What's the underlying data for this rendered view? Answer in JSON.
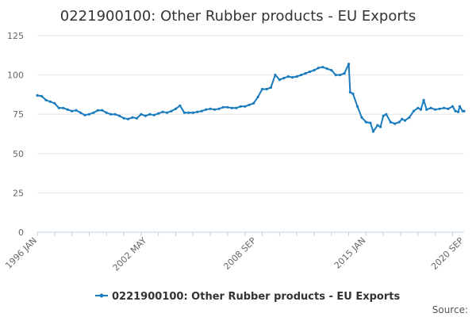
{
  "chart_data": {
    "type": "line",
    "title": "0221900100: Other Rubber products - EU Exports",
    "xlabel": "",
    "ylabel": "",
    "ylim": [
      0,
      125
    ],
    "yticks": [
      0,
      25,
      50,
      75,
      100,
      125
    ],
    "xrange": [
      "1996-01",
      "2020-09"
    ],
    "xticks": [
      {
        "label": "1996 JAN",
        "date": "1996-01"
      },
      {
        "label": "2002 MAY",
        "date": "2002-05"
      },
      {
        "label": "2008 SEP",
        "date": "2008-09"
      },
      {
        "label": "2015 JAN",
        "date": "2015-01"
      },
      {
        "label": "2020 SEP",
        "date": "2020-09"
      }
    ],
    "grid": "horizontal",
    "legend_position": "bottom",
    "series": [
      {
        "name": "0221900100: Other Rubber products - EU Exports",
        "color": "#1a7bbd",
        "points": [
          [
            "1996-01",
            87
          ],
          [
            "1996-04",
            86.5
          ],
          [
            "1996-07",
            84
          ],
          [
            "1996-10",
            83
          ],
          [
            "1997-01",
            82
          ],
          [
            "1997-04",
            79
          ],
          [
            "1997-07",
            79
          ],
          [
            "1997-10",
            78
          ],
          [
            "1998-01",
            77
          ],
          [
            "1998-04",
            77.5
          ],
          [
            "1998-07",
            76
          ],
          [
            "1998-10",
            74.5
          ],
          [
            "1999-01",
            75
          ],
          [
            "1999-04",
            76
          ],
          [
            "1999-07",
            77.5
          ],
          [
            "1999-10",
            77.5
          ],
          [
            "2000-01",
            76
          ],
          [
            "2000-04",
            75
          ],
          [
            "2000-07",
            75
          ],
          [
            "2000-10",
            74
          ],
          [
            "2001-01",
            72.5
          ],
          [
            "2001-04",
            72
          ],
          [
            "2001-07",
            73
          ],
          [
            "2001-10",
            72.5
          ],
          [
            "2002-01",
            75
          ],
          [
            "2002-04",
            74
          ],
          [
            "2002-07",
            75
          ],
          [
            "2002-10",
            74.5
          ],
          [
            "2003-01",
            75.5
          ],
          [
            "2003-04",
            76.5
          ],
          [
            "2003-07",
            76
          ],
          [
            "2003-10",
            77
          ],
          [
            "2004-01",
            78.5
          ],
          [
            "2004-04",
            80.5
          ],
          [
            "2004-07",
            76
          ],
          [
            "2004-10",
            76
          ],
          [
            "2005-01",
            76
          ],
          [
            "2005-04",
            76.5
          ],
          [
            "2005-07",
            77
          ],
          [
            "2005-10",
            78
          ],
          [
            "2006-01",
            78.5
          ],
          [
            "2006-04",
            78
          ],
          [
            "2006-07",
            78.5
          ],
          [
            "2006-10",
            79.5
          ],
          [
            "2007-01",
            79.5
          ],
          [
            "2007-04",
            79
          ],
          [
            "2007-07",
            79
          ],
          [
            "2007-10",
            80
          ],
          [
            "2008-01",
            80
          ],
          [
            "2008-04",
            81
          ],
          [
            "2008-07",
            82
          ],
          [
            "2008-10",
            86
          ],
          [
            "2009-01",
            91
          ],
          [
            "2009-04",
            91
          ],
          [
            "2009-07",
            92
          ],
          [
            "2009-10",
            100
          ],
          [
            "2010-01",
            97
          ],
          [
            "2010-04",
            98
          ],
          [
            "2010-07",
            99
          ],
          [
            "2010-10",
            98.5
          ],
          [
            "2011-01",
            99
          ],
          [
            "2011-04",
            100
          ],
          [
            "2011-07",
            101
          ],
          [
            "2011-10",
            102
          ],
          [
            "2012-01",
            103
          ],
          [
            "2012-04",
            104.5
          ],
          [
            "2012-07",
            105
          ],
          [
            "2012-10",
            104
          ],
          [
            "2013-01",
            103
          ],
          [
            "2013-04",
            100
          ],
          [
            "2013-07",
            100
          ],
          [
            "2013-10",
            101
          ],
          [
            "2014-01",
            107
          ],
          [
            "2014-02",
            89
          ],
          [
            "2014-04",
            88
          ],
          [
            "2014-07",
            80
          ],
          [
            "2014-10",
            73
          ],
          [
            "2015-01",
            70
          ],
          [
            "2015-04",
            69.5
          ],
          [
            "2015-06",
            64
          ],
          [
            "2015-09",
            68
          ],
          [
            "2015-11",
            67
          ],
          [
            "2016-01",
            74
          ],
          [
            "2016-03",
            75
          ],
          [
            "2016-06",
            70
          ],
          [
            "2016-09",
            69
          ],
          [
            "2016-12",
            70
          ],
          [
            "2017-02",
            72
          ],
          [
            "2017-04",
            71
          ],
          [
            "2017-07",
            73
          ],
          [
            "2017-10",
            77
          ],
          [
            "2018-01",
            79
          ],
          [
            "2018-03",
            78
          ],
          [
            "2018-05",
            84
          ],
          [
            "2018-07",
            78
          ],
          [
            "2018-10",
            79
          ],
          [
            "2019-01",
            78
          ],
          [
            "2019-04",
            78.5
          ],
          [
            "2019-07",
            79
          ],
          [
            "2019-10",
            78.5
          ],
          [
            "2020-01",
            80
          ],
          [
            "2020-03",
            77
          ],
          [
            "2020-05",
            76.5
          ],
          [
            "2020-06",
            80
          ],
          [
            "2020-08",
            77
          ],
          [
            "2020-09",
            77
          ]
        ]
      }
    ],
    "source_label": "Source:"
  }
}
